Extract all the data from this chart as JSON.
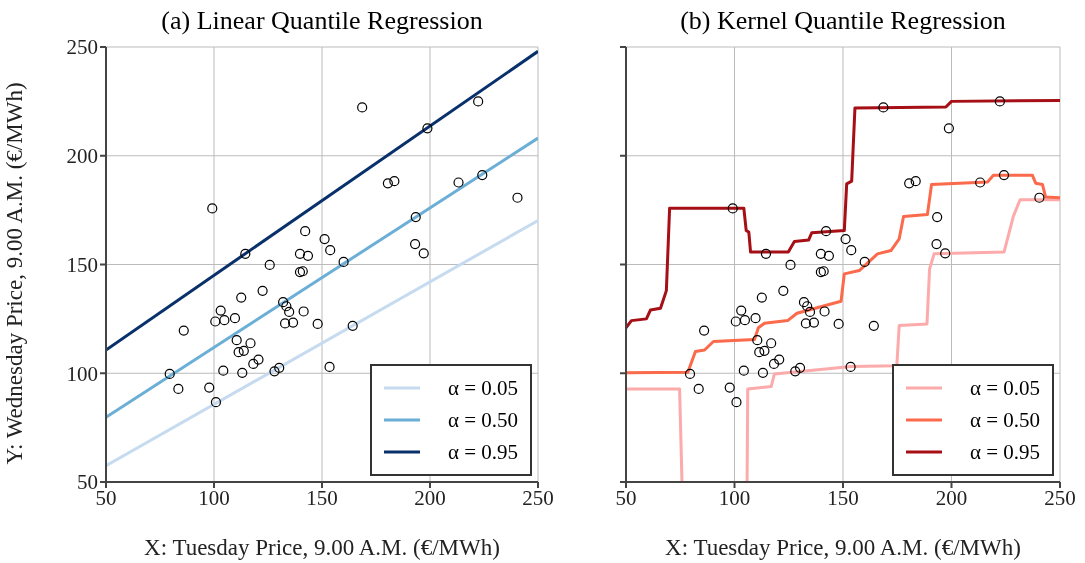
{
  "chart_data": [
    {
      "type": "line",
      "title": "(a) Linear Quantile Regression",
      "xlabel": "X: Tuesday Price, 9.00 A.M. (€/MWh)",
      "ylabel": "Y: Wednesday Price, 9.00 A.M. (€/MWh)",
      "xlim": [
        50,
        250
      ],
      "ylim": [
        50,
        250
      ],
      "xticks": [
        50,
        100,
        150,
        200,
        250
      ],
      "yticks": [
        50,
        100,
        150,
        200,
        250
      ],
      "grid": true,
      "legend": "bottom right",
      "marker": "none",
      "line_style": "solid",
      "series": [
        {
          "type": "scatter",
          "color": "#000000",
          "marker": "circle",
          "x": [
            168.6,
            222.3,
            198.8,
            180.5,
            183.5,
            213.2,
            224.2,
            240.5,
            99.2,
            193.4,
            193.1,
            197.1,
            142.2,
            151.2,
            153.8,
            139.8,
            143.5,
            114.5,
            160,
            125.8,
            139.8,
            141.1,
            122.5,
            112.6,
            132,
            133.5,
            134.8,
            141.5,
            103.1,
            100.6,
            104.8,
            109.7,
            132.9,
            136.6,
            148,
            164.2,
            86,
            110.5,
            116.9,
            111.4,
            113.8,
            120.6,
            118.2,
            104.3,
            113.1,
            128,
            130.2,
            153.5,
            79.5,
            83.5,
            97.8,
            100.9
          ],
          "values": [
            222.2,
            225,
            212.6,
            187.3,
            188.3,
            187.7,
            191.1,
            180.7,
            175.8,
            171.8,
            159.4,
            155.1,
            165.3,
            161.7,
            156.6,
            154.9,
            154,
            154.9,
            151.2,
            149.8,
            146.5,
            146.9,
            137.9,
            134.8,
            132.7,
            130.8,
            128.2,
            128.4,
            128.8,
            123.8,
            124.4,
            125.3,
            122.9,
            123.3,
            122.7,
            121.8,
            119.6,
            115.2,
            113.8,
            109.7,
            110.3,
            106.3,
            104.3,
            101.2,
            100.2,
            100.9,
            102.5,
            102.9,
            99.7,
            92.8,
            93.4,
            86.7
          ]
        },
        {
          "name": "α = 0.05",
          "color": "#c6dbef",
          "x": [
            50,
            250
          ],
          "values": [
            57.5,
            170.2
          ]
        },
        {
          "name": "α = 0.50",
          "color": "#6baed6",
          "x": [
            50,
            250
          ],
          "values": [
            79.8,
            208.1
          ]
        },
        {
          "name": "α = 0.95",
          "color": "#08306b",
          "x": [
            50,
            250
          ],
          "values": [
            110.7,
            248
          ]
        }
      ]
    },
    {
      "type": "line",
      "title": "(b) Kernel Quantile Regression",
      "xlabel": "X: Tuesday Price, 9.00 A.M. (€/MWh)",
      "xlim": [
        50,
        250
      ],
      "ylim": [
        50,
        250
      ],
      "xticks": [
        50,
        100,
        150,
        200,
        250
      ],
      "yticks": [
        50,
        100,
        150,
        200,
        250
      ],
      "tick_labels": "x",
      "grid": true,
      "legend": "bottom right",
      "marker": "none",
      "line_style": "solid",
      "series": [
        {
          "type": "scatter",
          "color": "#000000",
          "marker": "circle",
          "x": [
            168.6,
            222.3,
            198.8,
            180.5,
            183.5,
            213.2,
            224.2,
            240.5,
            99.2,
            193.4,
            193.1,
            197.1,
            142.2,
            151.2,
            153.8,
            139.8,
            143.5,
            114.5,
            160,
            125.8,
            139.8,
            141.1,
            122.5,
            112.6,
            132,
            133.5,
            134.8,
            141.5,
            103.1,
            100.6,
            104.8,
            109.7,
            132.9,
            136.6,
            148,
            164.2,
            86,
            110.5,
            116.9,
            111.4,
            113.8,
            120.6,
            118.2,
            104.3,
            113.1,
            128,
            130.2,
            153.5,
            79.5,
            83.5,
            97.8,
            100.9
          ],
          "values": [
            222.2,
            225,
            212.6,
            187.3,
            188.3,
            187.7,
            191.1,
            180.7,
            175.8,
            171.8,
            159.4,
            155.1,
            165.3,
            161.7,
            156.6,
            154.9,
            154,
            154.9,
            151.2,
            149.8,
            146.5,
            146.9,
            137.9,
            134.8,
            132.7,
            130.8,
            128.2,
            128.4,
            128.8,
            123.8,
            124.4,
            125.3,
            122.9,
            123.3,
            122.7,
            121.8,
            119.6,
            115.2,
            113.8,
            109.7,
            110.3,
            106.3,
            104.3,
            101.2,
            100.2,
            100.9,
            102.5,
            102.9,
            99.7,
            92.8,
            93.4,
            86.7
          ]
        },
        {
          "name": "α = 0.05",
          "color": "#fcaaaa",
          "x": [
            50,
            74.7,
            75.8,
            90,
            105.8,
            106.1,
            116.9,
            118.4,
            153.7,
            174.8,
            175.9,
            188.7,
            189.9,
            192,
            224.2,
            228.5,
            231.6,
            250
          ],
          "values": [
            92.8,
            92.8,
            50,
            null,
            50,
            92.8,
            93.9,
            99.7,
            103.1,
            103.5,
            121.9,
            122.7,
            148,
            154.9,
            155.7,
            172.1,
            179.8,
            179.8
          ]
        },
        {
          "name": "α = 0.50",
          "color": "#fb6a4a",
          "x": [
            50,
            78.5,
            82,
            86.2,
            90.3,
            109.2,
            111,
            113.8,
            124.5,
            128.8,
            149.1,
            150.6,
            157.5,
            165.9,
            172.1,
            175.9,
            177.9,
            188.9,
            190.8,
            216.6,
            219.3,
            237.3,
            238.8,
            241.9,
            243.4,
            250
          ],
          "values": [
            100.2,
            100.5,
            110,
            110.7,
            114.6,
            115.5,
            120.9,
            123,
            124.2,
            127.6,
            133.1,
            145.7,
            147.2,
            154.9,
            156.4,
            161.8,
            172.1,
            173,
            186.8,
            187.9,
            191,
            191,
            187.4,
            186.8,
            181,
            180.7
          ]
        },
        {
          "name": "α = 0.95",
          "color": "#a50f15",
          "x": [
            50,
            52.5,
            59.4,
            61.3,
            65.9,
            68.6,
            70.1,
            104.3,
            105.4,
            106.6,
            107.4,
            124.8,
            127.6,
            134.2,
            135.6,
            150.6,
            151.7,
            154,
            155.5,
            197.4,
            200,
            250
          ],
          "values": [
            120.9,
            124.2,
            125,
            129.1,
            129.9,
            138,
            175.9,
            175.9,
            165.6,
            164.9,
            155.7,
            155.7,
            160.6,
            161.3,
            164.6,
            165.6,
            187.1,
            188.3,
            221.9,
            222.4,
            225,
            225.4
          ]
        }
      ]
    }
  ]
}
